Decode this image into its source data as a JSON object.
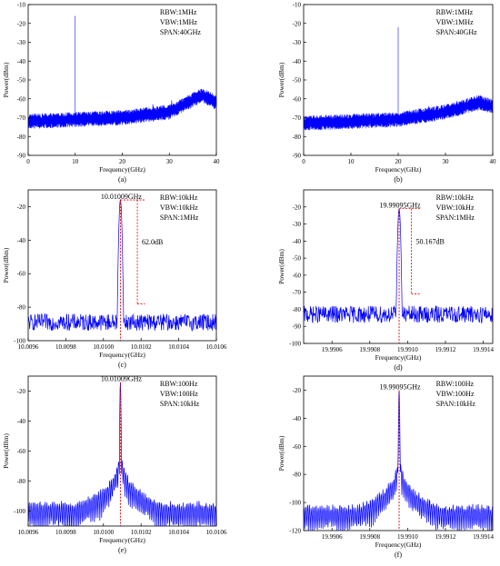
{
  "chart_data": [
    {
      "type": "line",
      "panel_label": "(a)",
      "xlabel": "Frequency(GHz)",
      "ylabel": "Power(dBm)",
      "xlim": [
        0,
        40
      ],
      "ylim": [
        -90,
        -10
      ],
      "xticks": [
        0,
        10,
        20,
        30,
        40
      ],
      "xtick_labels": [
        "0",
        "10",
        "20",
        "30",
        "40"
      ],
      "yticks": [
        -90,
        -80,
        -70,
        -60,
        -50,
        -40,
        -30,
        -20,
        -10
      ],
      "ytick_labels": [
        "-90",
        "-80",
        "-70",
        "-60",
        "-50",
        "-40",
        "-30",
        "-20",
        "-10"
      ],
      "settings": [
        "RBW:1MHz",
        "VBW:1MHz",
        "SPAN:40GHz"
      ],
      "color": "#0000ff",
      "trace": {
        "kind": "wideband",
        "peak": {
          "x": 10,
          "y": -16
        },
        "noise_floor": [
          {
            "x": 0,
            "y": -72
          },
          {
            "x": 20,
            "y": -70
          },
          {
            "x": 30,
            "y": -67
          },
          {
            "x": 37,
            "y": -58
          },
          {
            "x": 40,
            "y": -62
          }
        ],
        "noise_spread": 8,
        "spurs": [
          {
            "x": 26.5,
            "y": -63
          },
          {
            "x": 30.5,
            "y": -61
          }
        ]
      },
      "annotations": []
    },
    {
      "type": "line",
      "panel_label": "(b)",
      "xlabel": "Frequency(GHz)",
      "ylabel": "Power(dBm)",
      "xlim": [
        0,
        40
      ],
      "ylim": [
        -90,
        -10
      ],
      "xticks": [
        0,
        10,
        20,
        30,
        40
      ],
      "xtick_labels": [
        "0",
        "10",
        "20",
        "30",
        "40"
      ],
      "yticks": [
        -90,
        -80,
        -70,
        -60,
        -50,
        -40,
        -30,
        -20,
        -10
      ],
      "ytick_labels": [
        "-90",
        "-80",
        "-70",
        "-60",
        "-50",
        "-40",
        "-30",
        "-20",
        "-10"
      ],
      "settings": [
        "RBW:1MHz",
        "VBW:1MHz",
        "SPAN:40GHz"
      ],
      "color": "#0000ff",
      "trace": {
        "kind": "wideband",
        "peak": {
          "x": 20,
          "y": -22
        },
        "noise_floor": [
          {
            "x": 0,
            "y": -73
          },
          {
            "x": 20,
            "y": -71
          },
          {
            "x": 30,
            "y": -67
          },
          {
            "x": 37,
            "y": -62
          },
          {
            "x": 40,
            "y": -64
          }
        ],
        "noise_spread": 8,
        "spurs": [
          {
            "x": 26.5,
            "y": -64
          },
          {
            "x": 30.5,
            "y": -63
          }
        ]
      },
      "annotations": []
    },
    {
      "type": "line",
      "panel_label": "(c)",
      "xlabel": "Frequency(GHz)",
      "ylabel": "Power(dBm)",
      "xlim": [
        10.0096,
        10.0106
      ],
      "ylim": [
        -100,
        -10
      ],
      "xticks": [
        10.0096,
        10.0098,
        10.01,
        10.0102,
        10.0104,
        10.0106
      ],
      "xtick_labels": [
        "10.0096",
        "10.0098",
        "10.0100",
        "10.0102",
        "10.0104",
        "10.0106"
      ],
      "yticks": [
        -100,
        -80,
        -60,
        -40,
        -20
      ],
      "ytick_labels": [
        "-100",
        "-80",
        "-60",
        "-40",
        "-20"
      ],
      "settings": [
        "RBW:10kHz",
        "VBW:10kHz",
        "SPAN:1MHz"
      ],
      "color": "#0000ff",
      "trace": {
        "kind": "narrow",
        "center": 10.01009,
        "peak_y": -16,
        "halfwidth": 8.5e-06,
        "floor": -89,
        "noise_spread": 5
      },
      "peak_label": "10.01009GHz",
      "marker_x": 10.01009,
      "delta": {
        "label": "62.0dB",
        "x": 10.01018,
        "y_top": -16,
        "y_bottom": -78,
        "x_left": 10.01009,
        "x_right": 10.01022
      }
    },
    {
      "type": "line",
      "panel_label": "(d)",
      "xlabel": "Frequency(GHz)",
      "ylabel": "Power(dBm)",
      "xlim": [
        19.99045,
        19.99145
      ],
      "ylim": [
        -100,
        -10
      ],
      "xticks": [
        19.9906,
        19.9908,
        19.991,
        19.9912,
        19.9914
      ],
      "xtick_labels": [
        "19.9906",
        "19.9908",
        "19.9910",
        "19.9912",
        "19.9914"
      ],
      "yticks": [
        -100,
        -90,
        -80,
        -70,
        -60,
        -50,
        -40,
        -30,
        -20
      ],
      "ytick_labels": [
        "-100",
        "-90",
        "-80",
        "-70",
        "-60",
        "-50",
        "-40",
        "-30",
        "-20"
      ],
      "settings": [
        "RBW:10kHz",
        "VBW:10kHz",
        "SPAN:1MHz"
      ],
      "color": "#0000ff",
      "trace": {
        "kind": "narrow",
        "center": 19.990955,
        "peak_y": -21,
        "halfwidth": 8.5e-06,
        "floor": -83,
        "noise_spread": 5
      },
      "peak_label": "19.99095GHz",
      "marker_x": 19.990955,
      "delta": {
        "label": "50.167dB",
        "x": 19.99102,
        "y_top": -21,
        "y_bottom": -71,
        "x_left": 19.990955,
        "x_right": 19.99107
      }
    },
    {
      "type": "line",
      "panel_label": "(e)",
      "xlabel": "Frequency(GHz)",
      "ylabel": "Power(dBm)",
      "xlim": [
        10.0096,
        10.0106
      ],
      "ylim": [
        -110,
        -10
      ],
      "xticks": [
        10.0096,
        10.0098,
        10.01,
        10.0102,
        10.0104,
        10.0106
      ],
      "xtick_labels": [
        "10.0096",
        "10.0098",
        "10.0100",
        "10.0102",
        "10.0104",
        "10.0106"
      ],
      "yticks": [
        -100,
        -80,
        -60,
        -40,
        -20
      ],
      "ytick_labels": [
        "-100",
        "-80",
        "-60",
        "-40",
        "-20"
      ],
      "settings": [
        "RBW:100Hz",
        "VBW:100Hz",
        "SPAN:10kHz"
      ],
      "color": "#0000ff",
      "trace": {
        "kind": "sinc",
        "center": 10.01009,
        "peak_y": -14,
        "lobe_spacing": 9.5e-06,
        "floor": -95,
        "sidelobe_top": -58
      },
      "peak_label": "10.01009GHz",
      "marker_x": 10.01009
    },
    {
      "type": "line",
      "panel_label": "(f)",
      "xlabel": "Frequency(GHz)",
      "ylabel": "Power(dBm)",
      "xlim": [
        19.99045,
        19.99145
      ],
      "ylim": [
        -120,
        -10
      ],
      "xticks": [
        19.9906,
        19.9908,
        19.991,
        19.9912,
        19.9914
      ],
      "xtick_labels": [
        "19.9906",
        "19.9908",
        "19.9910",
        "19.9912",
        "19.9914"
      ],
      "yticks": [
        -120,
        -100,
        -80,
        -60,
        -40,
        -20
      ],
      "ytick_labels": [
        "-120",
        "-100",
        "-80",
        "-60",
        "-40",
        "-20"
      ],
      "settings": [
        "RBW:100Hz",
        "VBW:100Hz",
        "SPAN:10kHz"
      ],
      "color": "#0000ff",
      "trace": {
        "kind": "sinc",
        "center": 19.990955,
        "peak_y": -20,
        "lobe_spacing": 9.5e-06,
        "floor": -103,
        "sidelobe_top": -66
      },
      "peak_label": "19.99095GHz",
      "marker_x": 19.990955
    }
  ]
}
